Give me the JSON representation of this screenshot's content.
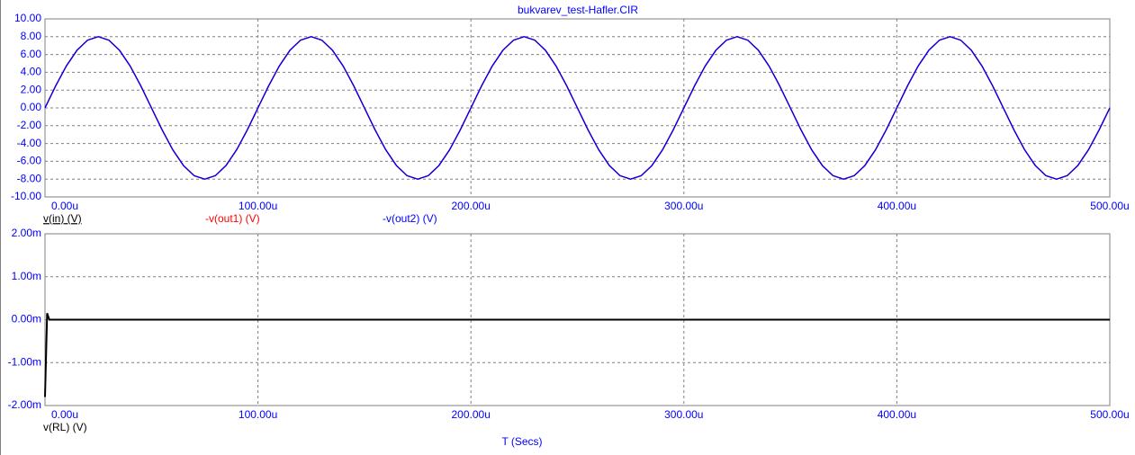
{
  "chart_data": [
    {
      "type": "line",
      "title": "bukvarev_test-Hafler.CIR",
      "x": [
        0,
        5e-06,
        1e-05,
        1.5e-05,
        2e-05,
        2.5e-05,
        3e-05,
        3.5e-05,
        4e-05,
        4.5e-05,
        5e-05,
        5.5e-05,
        6e-05,
        6.5e-05,
        7e-05,
        7.5e-05,
        8e-05,
        8.5e-05,
        9e-05,
        9.5e-05,
        0.0001,
        0.000105,
        0.00011,
        0.000115,
        0.00012,
        0.000125,
        0.00013,
        0.000135,
        0.00014,
        0.000145,
        0.00015,
        0.000155,
        0.00016,
        0.000165,
        0.00017,
        0.000175,
        0.00018,
        0.000185,
        0.00019,
        0.000195,
        0.0002,
        0.000205,
        0.00021,
        0.000215,
        0.00022,
        0.000225,
        0.00023,
        0.000235,
        0.00024,
        0.000245,
        0.00025,
        0.000255,
        0.00026,
        0.000265,
        0.00027,
        0.000275,
        0.00028,
        0.000285,
        0.00029,
        0.000295,
        0.0003,
        0.000305,
        0.00031,
        0.000315,
        0.00032,
        0.000325,
        0.00033,
        0.000335,
        0.00034,
        0.000345,
        0.00035,
        0.000355,
        0.00036,
        0.000365,
        0.00037,
        0.000375,
        0.00038,
        0.000385,
        0.00039,
        0.000395,
        0.0004,
        0.000405,
        0.00041,
        0.000415,
        0.00042,
        0.000425,
        0.00043,
        0.000435,
        0.00044,
        0.000445,
        0.00045,
        0.000455,
        0.00046,
        0.000465,
        0.00047,
        0.000475,
        0.00048,
        0.000485,
        0.00049,
        0.000495,
        0.0005
      ],
      "series": [
        {
          "name": "v(in) (V)",
          "color": "#000000",
          "values": [
            0,
            2.47,
            4.7,
            6.47,
            7.61,
            8,
            7.61,
            6.47,
            4.7,
            2.47,
            0,
            -2.47,
            -4.7,
            -6.47,
            -7.61,
            -8,
            -7.61,
            -6.47,
            -4.7,
            -2.47,
            0,
            2.47,
            4.7,
            6.47,
            7.61,
            8,
            7.61,
            6.47,
            4.7,
            2.47,
            0,
            -2.47,
            -4.7,
            -6.47,
            -7.61,
            -8,
            -7.61,
            -6.47,
            -4.7,
            -2.47,
            0,
            2.47,
            4.7,
            6.47,
            7.61,
            8,
            7.61,
            6.47,
            4.7,
            2.47,
            0,
            -2.47,
            -4.7,
            -6.47,
            -7.61,
            -8,
            -7.61,
            -6.47,
            -4.7,
            -2.47,
            0,
            2.47,
            4.7,
            6.47,
            7.61,
            8,
            7.61,
            6.47,
            4.7,
            2.47,
            0,
            -2.47,
            -4.7,
            -6.47,
            -7.61,
            -8,
            -7.61,
            -6.47,
            -4.7,
            -2.47,
            0,
            2.47,
            4.7,
            6.47,
            7.61,
            8,
            7.61,
            6.47,
            4.7,
            2.47,
            0,
            -2.47,
            -4.7,
            -6.47,
            -7.61,
            -8,
            -7.61,
            -6.47,
            -4.7,
            -2.47,
            0
          ]
        },
        {
          "name": "-v(out1) (V)",
          "color": "#ff0000",
          "values": [
            0,
            2.47,
            4.7,
            6.47,
            7.61,
            8,
            7.61,
            6.47,
            4.7,
            2.47,
            0,
            -2.47,
            -4.7,
            -6.47,
            -7.61,
            -8,
            -7.61,
            -6.47,
            -4.7,
            -2.47,
            0,
            2.47,
            4.7,
            6.47,
            7.61,
            8,
            7.61,
            6.47,
            4.7,
            2.47,
            0,
            -2.47,
            -4.7,
            -6.47,
            -7.61,
            -8,
            -7.61,
            -6.47,
            -4.7,
            -2.47,
            0,
            2.47,
            4.7,
            6.47,
            7.61,
            8,
            7.61,
            6.47,
            4.7,
            2.47,
            0,
            -2.47,
            -4.7,
            -6.47,
            -7.61,
            -8,
            -7.61,
            -6.47,
            -4.7,
            -2.47,
            0,
            2.47,
            4.7,
            6.47,
            7.61,
            8,
            7.61,
            6.47,
            4.7,
            2.47,
            0,
            -2.47,
            -4.7,
            -6.47,
            -7.61,
            -8,
            -7.61,
            -6.47,
            -4.7,
            -2.47,
            0,
            2.47,
            4.7,
            6.47,
            7.61,
            8,
            7.61,
            6.47,
            4.7,
            2.47,
            0,
            -2.47,
            -4.7,
            -6.47,
            -7.61,
            -8,
            -7.61,
            -6.47,
            -4.7,
            -2.47,
            0
          ]
        },
        {
          "name": "-v(out2) (V)",
          "color": "#0000ff",
          "values": [
            0,
            2.47,
            4.7,
            6.47,
            7.61,
            8,
            7.61,
            6.47,
            4.7,
            2.47,
            0,
            -2.47,
            -4.7,
            -6.47,
            -7.61,
            -8,
            -7.61,
            -6.47,
            -4.7,
            -2.47,
            0,
            2.47,
            4.7,
            6.47,
            7.61,
            8,
            7.61,
            6.47,
            4.7,
            2.47,
            0,
            -2.47,
            -4.7,
            -6.47,
            -7.61,
            -8,
            -7.61,
            -6.47,
            -4.7,
            -2.47,
            0,
            2.47,
            4.7,
            6.47,
            7.61,
            8,
            7.61,
            6.47,
            4.7,
            2.47,
            0,
            -2.47,
            -4.7,
            -6.47,
            -7.61,
            -8,
            -7.61,
            -6.47,
            -4.7,
            -2.47,
            0,
            2.47,
            4.7,
            6.47,
            7.61,
            8,
            7.61,
            6.47,
            4.7,
            2.47,
            0,
            -2.47,
            -4.7,
            -6.47,
            -7.61,
            -8,
            -7.61,
            -6.47,
            -4.7,
            -2.47,
            0,
            2.47,
            4.7,
            6.47,
            7.61,
            8,
            7.61,
            6.47,
            4.7,
            2.47,
            0,
            -2.47,
            -4.7,
            -6.47,
            -7.61,
            -8,
            -7.61,
            -6.47,
            -4.7,
            -2.47,
            0
          ]
        }
      ],
      "xlim": [
        0,
        0.0005
      ],
      "xticks": [
        {
          "value": 0,
          "label": "0.00u"
        },
        {
          "value": 0.0001,
          "label": "100.00u"
        },
        {
          "value": 0.0002,
          "label": "200.00u"
        },
        {
          "value": 0.0003,
          "label": "300.00u"
        },
        {
          "value": 0.0004,
          "label": "400.00u"
        },
        {
          "value": 0.0005,
          "label": "500.00u"
        }
      ],
      "ylim": [
        -10,
        10
      ],
      "yticks": [
        {
          "value": 10,
          "label": "10.00"
        },
        {
          "value": 8,
          "label": "8.00"
        },
        {
          "value": 6,
          "label": "6.00"
        },
        {
          "value": 4,
          "label": "4.00"
        },
        {
          "value": 2,
          "label": "2.00"
        },
        {
          "value": 0,
          "label": "0.00"
        },
        {
          "value": -2,
          "label": "-2.00"
        },
        {
          "value": -4,
          "label": "-4.00"
        },
        {
          "value": -6,
          "label": "-6.00"
        },
        {
          "value": -8,
          "label": "-8.00"
        },
        {
          "value": -10,
          "label": "-10.00"
        }
      ],
      "grid": true
    },
    {
      "type": "line",
      "x_label": "T (Secs)",
      "x": [
        0,
        1e-06,
        2e-06,
        1e-05,
        0.0001,
        0.0002,
        0.0003,
        0.0004,
        0.0005
      ],
      "series": [
        {
          "name": "v(RL) (V)",
          "color": "#000000",
          "values": [
            -0.0018,
            0.00015,
            0,
            0,
            0,
            0,
            0,
            0,
            0
          ]
        }
      ],
      "xlim": [
        0,
        0.0005
      ],
      "xticks": [
        {
          "value": 0,
          "label": "0.00u"
        },
        {
          "value": 0.0001,
          "label": "100.00u"
        },
        {
          "value": 0.0002,
          "label": "200.00u"
        },
        {
          "value": 0.0003,
          "label": "300.00u"
        },
        {
          "value": 0.0004,
          "label": "400.00u"
        },
        {
          "value": 0.0005,
          "label": "500.00u"
        }
      ],
      "ylim": [
        -0.002,
        0.002
      ],
      "yticks": [
        {
          "value": 0.002,
          "label": "2.00m"
        },
        {
          "value": 0.001,
          "label": "1.00m"
        },
        {
          "value": 0,
          "label": "0.00m"
        },
        {
          "value": -0.001,
          "label": "-1.00m"
        },
        {
          "value": -0.002,
          "label": "-2.00m"
        }
      ],
      "grid": true
    }
  ]
}
